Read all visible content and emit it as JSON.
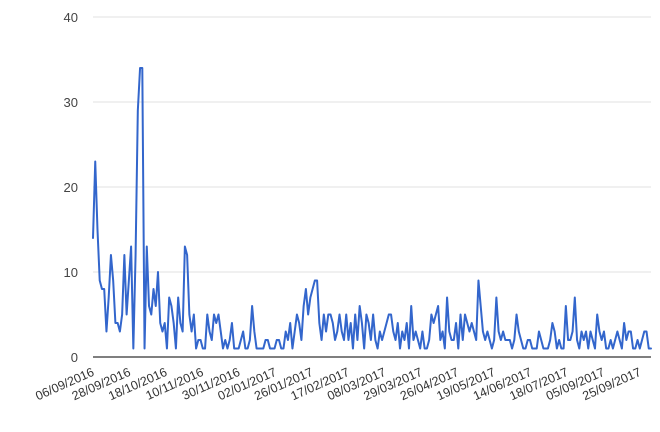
{
  "chart_data": {
    "type": "line",
    "title": "",
    "xlabel": "",
    "ylabel": "",
    "ylim": [
      0,
      40
    ],
    "y_ticks": [
      "0",
      "10",
      "20",
      "30",
      "40"
    ],
    "grid": true,
    "legend": "none",
    "x_range": [
      "06/09/2016",
      "10/10/2017"
    ],
    "x_ticks": [
      "06/09/2016",
      "28/09/2016",
      "18/10/2016",
      "10/11/2016",
      "30/11/2016",
      "02/01/2017",
      "26/01/2017",
      "17/02/2017",
      "08/03/2017",
      "29/03/2017",
      "26/04/2017",
      "19/05/2017",
      "14/06/2017",
      "18/07/2017",
      "05/09/2017",
      "25/09/2017"
    ],
    "series": [
      {
        "color": "#3366cc",
        "values": [
          14,
          23,
          15,
          9,
          8,
          8,
          3,
          7,
          12,
          9,
          4,
          4,
          3,
          5,
          12,
          5,
          9,
          13,
          1,
          12,
          29,
          34,
          34,
          1,
          13,
          6,
          5,
          8,
          6,
          10,
          4,
          3,
          4,
          1,
          7,
          6,
          4,
          1,
          7,
          4,
          3,
          13,
          12,
          5,
          3,
          5,
          1,
          2,
          2,
          1,
          1,
          5,
          3,
          2,
          5,
          4,
          5,
          3,
          1,
          2,
          1,
          2,
          4,
          1,
          1,
          1,
          2,
          3,
          1,
          1,
          2,
          6,
          3,
          1,
          1,
          1,
          1,
          2,
          2,
          1,
          1,
          1,
          2,
          2,
          1,
          1,
          3,
          2,
          4,
          1,
          3,
          5,
          4,
          2,
          6,
          8,
          5,
          7,
          8,
          9,
          9,
          4,
          2,
          5,
          3,
          5,
          5,
          4,
          2,
          3,
          5,
          3,
          2,
          5,
          2,
          4,
          1,
          5,
          2,
          6,
          4,
          1,
          5,
          4,
          2,
          5,
          2,
          1,
          3,
          2,
          3,
          4,
          5,
          5,
          3,
          2,
          4,
          1,
          3,
          2,
          4,
          1,
          6,
          2,
          3,
          2,
          1,
          3,
          1,
          1,
          2,
          5,
          4,
          5,
          6,
          2,
          3,
          1,
          7,
          3,
          2,
          2,
          4,
          1,
          5,
          2,
          5,
          4,
          3,
          4,
          3,
          2,
          9,
          6,
          3,
          2,
          3,
          2,
          1,
          2,
          7,
          3,
          2,
          3,
          2,
          2,
          2,
          1,
          2,
          5,
          3,
          2,
          1,
          1,
          2,
          2,
          1,
          1,
          1,
          3,
          2,
          1,
          1,
          1,
          2,
          4,
          3,
          1,
          2,
          1,
          1,
          6,
          2,
          2,
          3,
          7,
          2,
          1,
          3,
          2,
          3,
          1,
          3,
          2,
          1,
          5,
          3,
          2,
          3,
          1,
          1,
          2,
          1,
          2,
          3,
          2,
          1,
          4,
          2,
          3,
          3,
          1,
          1,
          2,
          1,
          2,
          3,
          3,
          1,
          1
        ]
      }
    ]
  }
}
